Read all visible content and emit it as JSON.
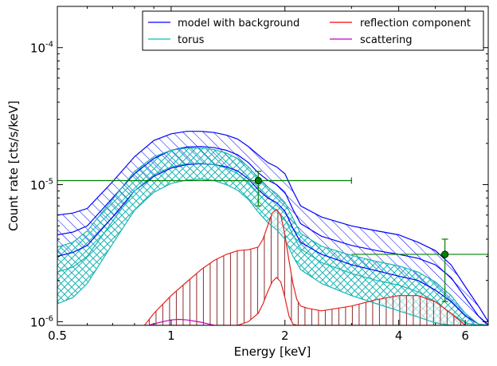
{
  "chart_data": {
    "type": "line",
    "xlabel": "Energy [keV]",
    "ylabel": "Count rate [cts/s/keV]",
    "x_scale": "log",
    "y_scale": "log",
    "xlim": [
      0.5,
      6.9
    ],
    "ylim": [
      9.4e-07,
      0.0002
    ],
    "x_ticks": [
      {
        "value": 0.5,
        "label": "0.5"
      },
      {
        "value": 1,
        "label": "1"
      },
      {
        "value": 2,
        "label": "2"
      },
      {
        "value": 4,
        "label": "4"
      },
      {
        "value": 6,
        "label": "6"
      }
    ],
    "y_ticks": [
      {
        "value": 1e-06,
        "mant": "10",
        "exp": "-6"
      },
      {
        "value": 1e-05,
        "mant": "10",
        "exp": "-5"
      },
      {
        "value": 0.0001,
        "mant": "10",
        "exp": "-4"
      }
    ],
    "legend": {
      "placement": "top-right",
      "entries": [
        {
          "label": "model with background",
          "color": "#0000ff"
        },
        {
          "label": "reflection component",
          "color": "#ff0000"
        },
        {
          "label": "torus",
          "color": "#00bfbf"
        },
        {
          "label": "scattering",
          "color": "#bf00bf"
        }
      ]
    },
    "colors": {
      "model": "#0000ff",
      "torus": "#1ab5b5",
      "reflection": "#e8201a",
      "reflection_hatch": "#8b2b2b",
      "scattering": "#bf00bf",
      "data": "#007f00"
    },
    "x": [
      0.5,
      0.55,
      0.6,
      0.7,
      0.8,
      0.9,
      1.0,
      1.1,
      1.2,
      1.3,
      1.4,
      1.5,
      1.6,
      1.7,
      1.8,
      1.9,
      2.0,
      2.1,
      2.2,
      2.5,
      3.0,
      3.5,
      4.0,
      4.5,
      5.0,
      5.5,
      6.0,
      6.5,
      6.9
    ],
    "series": [
      {
        "id": "model_upper",
        "values": [
          6e-06,
          6.2e-06,
          6.7e-06,
          1.05e-05,
          1.6e-05,
          2.1e-05,
          2.35e-05,
          2.45e-05,
          2.45e-05,
          2.4e-05,
          2.3e-05,
          2.15e-05,
          1.9e-05,
          1.65e-05,
          1.45e-05,
          1.35e-05,
          1.2e-05,
          9e-06,
          7e-06,
          5.8e-06,
          5e-06,
          4.6e-06,
          4.3e-06,
          3.8e-06,
          3.3e-06,
          2.6e-06,
          1.8e-06,
          1.3e-06,
          1e-06
        ]
      },
      {
        "id": "model_mid",
        "values": [
          4.3e-06,
          4.5e-06,
          5e-06,
          8e-06,
          1.2e-05,
          1.55e-05,
          1.78e-05,
          1.88e-05,
          1.9e-05,
          1.86e-05,
          1.78e-05,
          1.65e-05,
          1.45e-05,
          1.22e-05,
          1.08e-05,
          1e-05,
          8.8e-06,
          6.6e-06,
          5.2e-06,
          4.2e-06,
          3.6e-06,
          3.3e-06,
          3.1e-06,
          2.9e-06,
          2.6e-06,
          2.1e-06,
          1.5e-06,
          1.1e-06,
          9.5e-07
        ]
      },
      {
        "id": "model_lower",
        "values": [
          3e-06,
          3.2e-06,
          3.6e-06,
          5.8e-06,
          9e-06,
          1.15e-05,
          1.32e-05,
          1.4e-05,
          1.42e-05,
          1.4e-05,
          1.35e-05,
          1.26e-05,
          1.1e-05,
          9.2e-06,
          8e-06,
          7.4e-06,
          6.4e-06,
          4.8e-06,
          3.8e-06,
          3.1e-06,
          2.6e-06,
          2.35e-06,
          2.15e-06,
          2e-06,
          1.7e-06,
          1.4e-06,
          1.1e-06,
          9.6e-07,
          9.4e-07
        ]
      },
      {
        "id": "torus_upper",
        "values": [
          3.5e-06,
          3.8e-06,
          4.6e-06,
          7.8e-06,
          1.25e-05,
          1.6e-05,
          1.78e-05,
          1.85e-05,
          1.85e-05,
          1.8e-05,
          1.7e-05,
          1.55e-05,
          1.35e-05,
          1.12e-05,
          9.6e-06,
          8.6e-06,
          7.4e-06,
          5.7e-06,
          4.4e-06,
          3.55e-06,
          3.05e-06,
          2.75e-06,
          2.55e-06,
          2.3e-06,
          1.95e-06,
          1.55e-06,
          1.15e-06,
          9.6e-07,
          9.4e-07
        ]
      },
      {
        "id": "torus_mid",
        "values": [
          2.3e-06,
          2.5e-06,
          3e-06,
          5.4e-06,
          9e-06,
          1.18e-05,
          1.35e-05,
          1.42e-05,
          1.43e-05,
          1.4e-05,
          1.32e-05,
          1.2e-05,
          1.04e-05,
          8.6e-06,
          7.3e-06,
          6.5e-06,
          5.6e-06,
          4.3e-06,
          3.4e-06,
          2.7e-06,
          2.25e-06,
          2e-06,
          1.85e-06,
          1.65e-06,
          1.4e-06,
          1.15e-06,
          9.8e-07,
          9.4e-07,
          9.4e-07
        ]
      },
      {
        "id": "torus_lower",
        "values": [
          1.35e-06,
          1.5e-06,
          1.9e-06,
          3.7e-06,
          6.5e-06,
          8.8e-06,
          1.02e-05,
          1.08e-05,
          1.1e-05,
          1.07e-05,
          1e-05,
          9.1e-06,
          7.8e-06,
          6.3e-06,
          5.3e-06,
          4.7e-06,
          4e-06,
          3e-06,
          2.4e-06,
          1.9e-06,
          1.55e-06,
          1.35e-06,
          1.2e-06,
          1.08e-06,
          9.8e-07,
          9.4e-07,
          9.4e-07,
          9.4e-07,
          9.4e-07
        ]
      }
    ],
    "reflection": {
      "x": [
        0.85,
        0.9,
        1.0,
        1.1,
        1.2,
        1.3,
        1.4,
        1.5,
        1.6,
        1.7,
        1.75,
        1.8,
        1.85,
        1.9,
        1.95,
        2.0,
        2.05,
        2.1,
        2.15,
        2.2,
        2.3,
        2.5,
        3.0,
        3.5,
        4.0,
        4.5,
        5.0,
        5.5,
        6.0
      ],
      "upper": [
        9.4e-07,
        1.15e-06,
        1.55e-06,
        1.95e-06,
        2.4e-06,
        2.8e-06,
        3.1e-06,
        3.3e-06,
        3.35e-06,
        3.5e-06,
        4e-06,
        5e-06,
        6.2e-06,
        6.6e-06,
        6e-06,
        4.3e-06,
        2.8e-06,
        1.9e-06,
        1.45e-06,
        1.3e-06,
        1.25e-06,
        1.2e-06,
        1.3e-06,
        1.45e-06,
        1.55e-06,
        1.55e-06,
        1.4e-06,
        1.15e-06,
        9.4e-07
      ],
      "lower": [
        9.4e-07,
        9.4e-07,
        9.4e-07,
        9.4e-07,
        9.4e-07,
        9.4e-07,
        9.4e-07,
        9.4e-07,
        1e-06,
        1.15e-06,
        1.35e-06,
        1.65e-06,
        1.95e-06,
        2.1e-06,
        1.95e-06,
        1.5e-06,
        1.1e-06,
        9.6e-07,
        9.4e-07,
        9.4e-07,
        9.4e-07,
        9.4e-07,
        9.4e-07,
        9.4e-07,
        9.4e-07,
        9.4e-07,
        9.4e-07,
        9.4e-07,
        9.4e-07
      ]
    },
    "scattering": {
      "x": [
        0.88,
        0.95,
        1.0,
        1.05,
        1.1,
        1.2,
        1.3
      ],
      "values": [
        9.5e-07,
        1e-06,
        1.03e-06,
        1.04e-06,
        1.03e-06,
        9.9e-07,
        9.4e-07
      ]
    },
    "data_points": [
      {
        "x": 1.7,
        "xlow": 0.5,
        "xhigh": 3.0,
        "y": 1.07e-05,
        "ylow": 7e-06,
        "yhigh": 1.25e-05
      },
      {
        "x": 5.3,
        "xlow": 3.0,
        "xhigh": 6.9,
        "y": 3.1e-06,
        "ylow": 1.4e-06,
        "yhigh": 4e-06
      }
    ]
  }
}
